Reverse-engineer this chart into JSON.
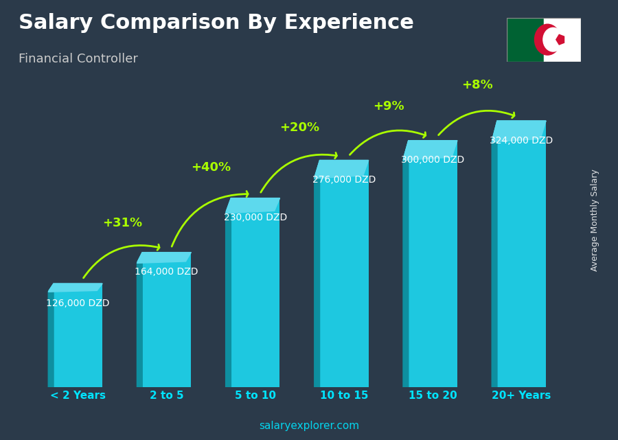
{
  "title": "Salary Comparison By Experience",
  "subtitle": "Financial Controller",
  "categories": [
    "< 2 Years",
    "2 to 5",
    "5 to 10",
    "10 to 15",
    "15 to 20",
    "20+ Years"
  ],
  "values": [
    126000,
    164000,
    230000,
    276000,
    300000,
    324000
  ],
  "labels": [
    "126,000 DZD",
    "164,000 DZD",
    "230,000 DZD",
    "276,000 DZD",
    "300,000 DZD",
    "324,000 DZD"
  ],
  "pct_changes": [
    null,
    "+31%",
    "+40%",
    "+20%",
    "+9%",
    "+8%"
  ],
  "bar_color_top": "#00bcd4",
  "bar_color_mid": "#29b6f6",
  "bar_color_dark": "#0097a7",
  "arrow_color": "#aaff00",
  "title_color": "#ffffff",
  "subtitle_color": "#cccccc",
  "label_color": "#ffffff",
  "xlabel_color": "#00e5ff",
  "ylabel_text": "Average Monthly Salary",
  "watermark": "salaryexplorer.com",
  "bg_color": "#1a2a3a",
  "background_image": false,
  "ylim_max": 380000
}
